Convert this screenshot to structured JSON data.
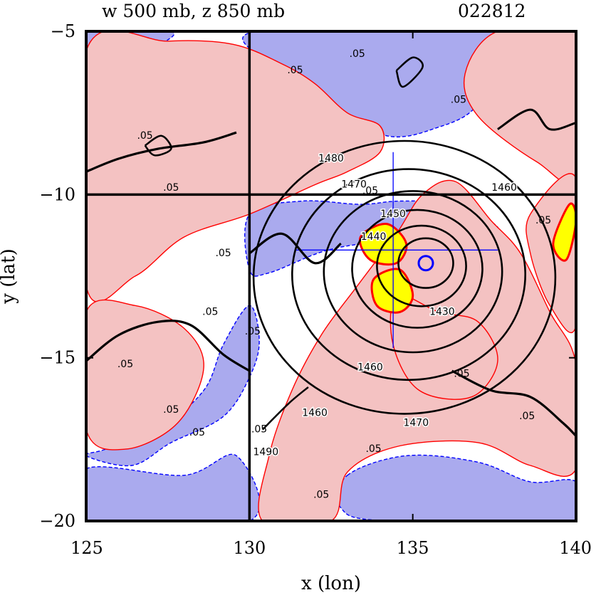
{
  "chart_data": {
    "type": "contour",
    "title": "w 500 mb, z 850 mb",
    "date_code": "022812",
    "xlabel": "x (lon)",
    "ylabel": "y (lat)",
    "xlim": [
      125,
      140
    ],
    "ylim": [
      -20,
      -5
    ],
    "x_ticks": [
      125,
      130,
      135,
      140
    ],
    "y_ticks": [
      -5,
      -10,
      -15,
      -20
    ],
    "gridlines": {
      "x": [
        130
      ],
      "y": [
        -10
      ]
    },
    "colors": {
      "positive_fill": "#f4c2c2",
      "negative_fill": "#aaaaee",
      "positive_line": "#ff0000",
      "negative_line": "#0000ff",
      "strong_fill": "#ffff00",
      "height_line": "#000000"
    },
    "center": {
      "lon": 135.4,
      "lat": -12.1
    },
    "height_contours": [
      {
        "value": 1440,
        "radius_deg": 0.8
      },
      {
        "value": 1450,
        "radius_deg": 1.3
      },
      {
        "value": 1460,
        "radius_deg": 1.9
      },
      {
        "value": 1470,
        "radius_deg": 2.6
      },
      {
        "value": 1480,
        "radius_deg": 3.4
      },
      {
        "value": 1490,
        "radius_deg": 4.4
      }
    ],
    "height_labels": [
      {
        "text": "1480",
        "lon": 132.5,
        "lat": -8.9
      },
      {
        "text": "1470",
        "lon": 133.2,
        "lat": -9.7
      },
      {
        "text": "1460",
        "lon": 137.8,
        "lat": -9.8
      },
      {
        "text": "1450",
        "lon": 134.4,
        "lat": -10.6
      },
      {
        "text": "1440",
        "lon": 133.8,
        "lat": -11.3
      },
      {
        "text": "1430",
        "lon": 135.9,
        "lat": -13.6
      },
      {
        "text": "1460",
        "lon": 133.7,
        "lat": -15.3
      },
      {
        "text": "1460",
        "lon": 132.0,
        "lat": -16.7
      },
      {
        "text": "1470",
        "lon": 135.1,
        "lat": -17.0
      },
      {
        "text": "1490",
        "lon": 130.5,
        "lat": -17.9
      }
    ],
    "w_labels": [
      {
        "text": ".05",
        "lon": 133.3,
        "lat": -5.7
      },
      {
        "text": ".05",
        "lon": 131.4,
        "lat": -6.2
      },
      {
        "text": ".05",
        "lon": 136.4,
        "lat": -7.1
      },
      {
        "text": ".05",
        "lon": 126.8,
        "lat": -8.2
      },
      {
        "text": ".05",
        "lon": 127.6,
        "lat": -9.8
      },
      {
        "text": ".05",
        "lon": 133.7,
        "lat": -9.9
      },
      {
        "text": ".05",
        "lon": 139.0,
        "lat": -10.8
      },
      {
        "text": ".05",
        "lon": 129.2,
        "lat": -11.8
      },
      {
        "text": ".05",
        "lon": 128.8,
        "lat": -13.6
      },
      {
        "text": ".05",
        "lon": 130.1,
        "lat": -14.2
      },
      {
        "text": ".05",
        "lon": 126.2,
        "lat": -15.2
      },
      {
        "text": ".05",
        "lon": 127.6,
        "lat": -16.6
      },
      {
        "text": ".05",
        "lon": 128.4,
        "lat": -17.3
      },
      {
        "text": ".05",
        "lon": 130.3,
        "lat": -17.2
      },
      {
        "text": ".05",
        "lon": 136.5,
        "lat": -15.5
      },
      {
        "text": ".05",
        "lon": 138.5,
        "lat": -16.8
      },
      {
        "text": ".05",
        "lon": 133.8,
        "lat": -17.8
      },
      {
        "text": ".05",
        "lon": 132.2,
        "lat": -19.2
      }
    ],
    "positive_regions": [
      {
        "points": [
          [
            125.0,
            -5.6
          ],
          [
            127.5,
            -5.3
          ],
          [
            129.5,
            -5.4
          ],
          [
            131.0,
            -6.0
          ],
          [
            132.0,
            -6.6
          ],
          [
            133.0,
            -7.5
          ],
          [
            134.0,
            -7.9
          ],
          [
            134.0,
            -8.7
          ],
          [
            133.0,
            -9.3
          ],
          [
            132.0,
            -9.7
          ],
          [
            130.0,
            -10.6
          ],
          [
            128.0,
            -11.3
          ],
          [
            126.5,
            -12.5
          ],
          [
            125.0,
            -12.8
          ]
        ]
      },
      {
        "points": [
          [
            130.4,
            -20.0
          ],
          [
            130.6,
            -18.0
          ],
          [
            131.3,
            -16.0
          ],
          [
            132.2,
            -14.3
          ],
          [
            133.3,
            -12.8
          ],
          [
            134.5,
            -11.2
          ],
          [
            135.3,
            -10.0
          ],
          [
            136.3,
            -9.6
          ],
          [
            137.4,
            -10.8
          ],
          [
            138.3,
            -11.8
          ],
          [
            139.2,
            -13.6
          ],
          [
            140.0,
            -15.2
          ],
          [
            140.0,
            -18.4
          ],
          [
            138.6,
            -18.3
          ],
          [
            137.0,
            -17.6
          ],
          [
            134.6,
            -17.7
          ],
          [
            133.0,
            -18.5
          ],
          [
            132.5,
            -20.0
          ]
        ]
      },
      {
        "points": [
          [
            125.0,
            -13.6
          ],
          [
            126.5,
            -13.4
          ],
          [
            128.0,
            -14.1
          ],
          [
            128.6,
            -15.3
          ],
          [
            127.8,
            -17.0
          ],
          [
            126.2,
            -17.8
          ],
          [
            125.0,
            -17.2
          ]
        ]
      },
      {
        "points": [
          [
            137.6,
            -5.0
          ],
          [
            140.0,
            -5.0
          ],
          [
            140.0,
            -9.4
          ],
          [
            138.8,
            -9.0
          ],
          [
            137.0,
            -7.6
          ],
          [
            136.6,
            -6.3
          ]
        ]
      },
      {
        "points": [
          [
            138.6,
            -10.6
          ],
          [
            140.0,
            -9.5
          ],
          [
            140.0,
            -14.0
          ],
          [
            139.2,
            -13.4
          ],
          [
            138.6,
            -11.8
          ]
        ]
      },
      {
        "points": [
          [
            134.5,
            -13.1
          ],
          [
            135.8,
            -13.6
          ],
          [
            137.0,
            -13.9
          ],
          [
            137.6,
            -15.1
          ],
          [
            136.8,
            -16.2
          ],
          [
            135.2,
            -16.0
          ],
          [
            134.4,
            -14.6
          ]
        ]
      }
    ],
    "negative_regions": [
      {
        "points": [
          [
            125.0,
            -5.0
          ],
          [
            127.6,
            -5.0
          ],
          [
            127.0,
            -5.6
          ],
          [
            125.8,
            -6.6
          ],
          [
            125.0,
            -6.8
          ]
        ]
      },
      {
        "points": [
          [
            130.2,
            -5.0
          ],
          [
            137.4,
            -5.0
          ],
          [
            137.0,
            -7.2
          ],
          [
            135.6,
            -8.0
          ],
          [
            134.2,
            -8.2
          ],
          [
            132.8,
            -7.4
          ],
          [
            131.8,
            -6.8
          ],
          [
            130.8,
            -6.1
          ]
        ]
      },
      {
        "points": [
          [
            125.0,
            -9.4
          ],
          [
            126.6,
            -9.9
          ],
          [
            127.4,
            -9.2
          ],
          [
            128.2,
            -10.0
          ],
          [
            127.4,
            -10.6
          ],
          [
            126.0,
            -10.8
          ],
          [
            125.0,
            -10.5
          ]
        ]
      },
      {
        "points": [
          [
            130.0,
            -10.6
          ],
          [
            131.6,
            -10.2
          ],
          [
            133.4,
            -10.3
          ],
          [
            134.6,
            -10.2
          ],
          [
            136.2,
            -10.3
          ],
          [
            137.6,
            -11.0
          ],
          [
            137.2,
            -11.6
          ],
          [
            136.0,
            -11.3
          ],
          [
            134.4,
            -11.4
          ],
          [
            132.4,
            -11.7
          ],
          [
            130.6,
            -12.4
          ],
          [
            130.0,
            -12.3
          ]
        ]
      },
      {
        "points": [
          [
            125.0,
            -18.0
          ],
          [
            126.4,
            -18.3
          ],
          [
            127.6,
            -17.6
          ],
          [
            129.2,
            -16.8
          ],
          [
            130.0,
            -15.6
          ],
          [
            130.3,
            -14.5
          ],
          [
            130.0,
            -13.4
          ],
          [
            129.2,
            -14.6
          ],
          [
            128.6,
            -16.0
          ],
          [
            127.2,
            -17.2
          ],
          [
            125.6,
            -17.8
          ]
        ]
      },
      {
        "points": [
          [
            125.0,
            -18.4
          ],
          [
            128.0,
            -18.6
          ],
          [
            129.6,
            -18.0
          ],
          [
            130.0,
            -20.0
          ],
          [
            125.0,
            -20.0
          ]
        ]
      },
      {
        "points": [
          [
            133.0,
            -18.6
          ],
          [
            134.8,
            -18.0
          ],
          [
            137.0,
            -18.2
          ],
          [
            138.6,
            -18.8
          ],
          [
            140.0,
            -18.8
          ],
          [
            140.0,
            -20.0
          ],
          [
            134.2,
            -20.0
          ],
          [
            132.8,
            -19.6
          ]
        ]
      },
      {
        "points": [
          [
            138.8,
            -15.6
          ],
          [
            139.6,
            -15.2
          ],
          [
            140.0,
            -16.0
          ],
          [
            140.0,
            -18.2
          ],
          [
            139.0,
            -17.8
          ],
          [
            138.6,
            -16.6
          ]
        ]
      }
    ],
    "strong_regions": [
      {
        "points": [
          [
            133.4,
            -11.3
          ],
          [
            134.2,
            -10.9
          ],
          [
            134.8,
            -11.5
          ],
          [
            134.5,
            -12.1
          ],
          [
            133.7,
            -12.0
          ]
        ]
      },
      {
        "points": [
          [
            133.8,
            -12.6
          ],
          [
            134.6,
            -12.3
          ],
          [
            135.0,
            -13.1
          ],
          [
            134.6,
            -13.6
          ],
          [
            133.9,
            -13.4
          ]
        ]
      },
      {
        "points": [
          [
            139.3,
            -11.5
          ],
          [
            139.8,
            -10.3
          ],
          [
            140.0,
            -10.8
          ],
          [
            139.7,
            -12.0
          ]
        ]
      }
    ],
    "black_paths": [
      {
        "points": [
          [
            130.0,
            -5.0
          ],
          [
            130.0,
            -20.0
          ]
        ],
        "width": 3.5
      },
      {
        "points": [
          [
            125.0,
            -10.0
          ],
          [
            140.0,
            -10.0
          ]
        ],
        "width": 3.5
      },
      {
        "points": [
          [
            125.0,
            -9.3
          ],
          [
            126.0,
            -8.9
          ],
          [
            127.2,
            -8.6
          ],
          [
            128.6,
            -8.4
          ],
          [
            129.6,
            -8.1
          ]
        ],
        "width": 3.2
      },
      {
        "points": [
          [
            125.0,
            -15.1
          ],
          [
            126.0,
            -14.3
          ],
          [
            127.2,
            -13.9
          ],
          [
            128.2,
            -14.0
          ],
          [
            129.2,
            -14.9
          ],
          [
            130.0,
            -15.4
          ]
        ],
        "width": 3.2
      },
      {
        "points": [
          [
            130.4,
            -17.2
          ],
          [
            131.2,
            -16.4
          ],
          [
            131.8,
            -15.9
          ]
        ],
        "width": 2.5
      },
      {
        "points": [
          [
            130.0,
            -11.8
          ],
          [
            131.0,
            -11.2
          ],
          [
            132.0,
            -12.1
          ],
          [
            132.8,
            -11.5
          ]
        ],
        "width": 3.2
      },
      {
        "points": [
          [
            137.6,
            -8.0
          ],
          [
            138.6,
            -7.4
          ],
          [
            139.2,
            -8.0
          ],
          [
            140.0,
            -7.8
          ]
        ],
        "width": 3.0
      },
      {
        "points": [
          [
            136.2,
            -15.4
          ],
          [
            137.4,
            -16.0
          ],
          [
            138.6,
            -16.2
          ],
          [
            139.6,
            -17.0
          ],
          [
            140.0,
            -17.4
          ]
        ],
        "width": 3.2
      },
      {
        "points": [
          [
            126.8,
            -8.5
          ],
          [
            127.3,
            -8.2
          ],
          [
            127.6,
            -8.6
          ],
          [
            127.1,
            -8.8
          ],
          [
            126.8,
            -8.5
          ]
        ],
        "width": 2.5
      },
      {
        "points": [
          [
            134.5,
            -6.2
          ],
          [
            135.0,
            -5.8
          ],
          [
            135.3,
            -6.1
          ],
          [
            134.7,
            -6.7
          ],
          [
            134.5,
            -6.2
          ]
        ],
        "width": 2.5
      }
    ],
    "blue_guides": [
      {
        "points": [
          [
            134.4,
            -8.7
          ],
          [
            134.4,
            -14.7
          ]
        ]
      },
      {
        "points": [
          [
            131.4,
            -11.7
          ],
          [
            137.6,
            -11.7
          ]
        ]
      }
    ]
  }
}
